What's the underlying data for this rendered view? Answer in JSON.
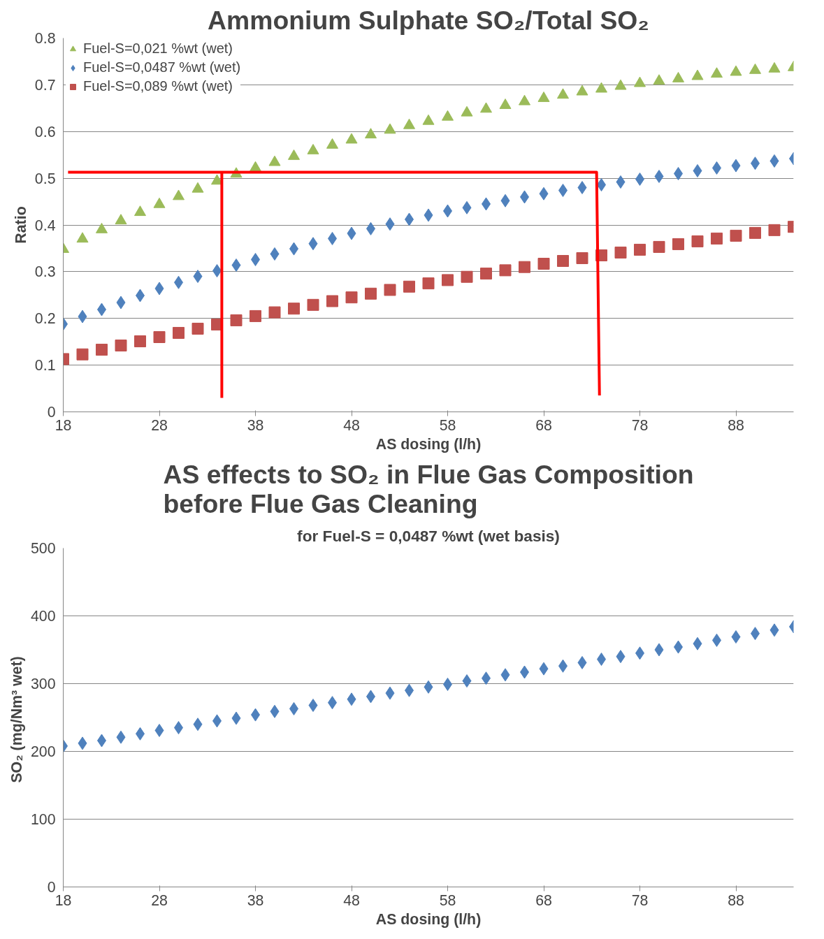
{
  "chart_data": [
    {
      "type": "scatter",
      "title": "Ammonium Sulphate SO₂/Total SO₂",
      "xlabel": "AS dosing (l/h)",
      "ylabel": "Ratio",
      "x": [
        18,
        20,
        22,
        24,
        26,
        28,
        30,
        32,
        34,
        36,
        38,
        40,
        42,
        44,
        46,
        48,
        50,
        52,
        54,
        56,
        58,
        60,
        62,
        64,
        66,
        68,
        70,
        72,
        74,
        76,
        78,
        80,
        82,
        84,
        86,
        88,
        90,
        92,
        94
      ],
      "xlim": [
        18,
        94
      ],
      "xticks": [
        18,
        28,
        38,
        48,
        58,
        68,
        78,
        88
      ],
      "ylim": [
        0,
        0.8
      ],
      "yticks": [
        0,
        0.1,
        0.2,
        0.3,
        0.4,
        0.5,
        0.6,
        0.7,
        0.8
      ],
      "grid": "y",
      "legend": "top left",
      "series": [
        {
          "name": "Fuel-S=0,021 %wt (wet)",
          "color": "#9bbb59",
          "marker": "triangle",
          "values": [
            0.348,
            0.37,
            0.39,
            0.409,
            0.427,
            0.444,
            0.461,
            0.477,
            0.494,
            0.509,
            0.522,
            0.534,
            0.547,
            0.559,
            0.571,
            0.582,
            0.593,
            0.603,
            0.613,
            0.622,
            0.631,
            0.64,
            0.648,
            0.656,
            0.664,
            0.671,
            0.678,
            0.685,
            0.691,
            0.697,
            0.703,
            0.708,
            0.713,
            0.718,
            0.723,
            0.727,
            0.731,
            0.734,
            0.737
          ]
        },
        {
          "name": "Fuel-S=0,0487 %wt (wet)",
          "color": "#4f81bd",
          "marker": "diamond",
          "values": [
            0.188,
            0.204,
            0.219,
            0.234,
            0.249,
            0.264,
            0.277,
            0.29,
            0.302,
            0.314,
            0.326,
            0.338,
            0.349,
            0.36,
            0.371,
            0.382,
            0.392,
            0.402,
            0.412,
            0.421,
            0.43,
            0.437,
            0.445,
            0.452,
            0.46,
            0.467,
            0.474,
            0.48,
            0.486,
            0.492,
            0.498,
            0.504,
            0.51,
            0.516,
            0.522,
            0.527,
            0.532,
            0.537,
            0.542
          ]
        },
        {
          "name": "Fuel-S=0,089 %wt (wet)",
          "color": "#c0504d",
          "marker": "square",
          "values": [
            0.113,
            0.123,
            0.133,
            0.142,
            0.151,
            0.16,
            0.169,
            0.178,
            0.187,
            0.196,
            0.205,
            0.213,
            0.221,
            0.229,
            0.237,
            0.245,
            0.253,
            0.261,
            0.268,
            0.275,
            0.282,
            0.289,
            0.296,
            0.303,
            0.31,
            0.317,
            0.323,
            0.329,
            0.335,
            0.341,
            0.347,
            0.353,
            0.359,
            0.365,
            0.371,
            0.377,
            0.383,
            0.389,
            0.396
          ]
        },
        {
          "type": "line",
          "color": "#ff0000",
          "marker": "none",
          "x": [
            18.5,
            73.5,
            73.8
          ],
          "values": [
            0.513,
            0.513,
            0.035
          ]
        },
        {
          "type": "line",
          "color": "#ff0000",
          "marker": "none",
          "x": [
            34.5,
            34.5
          ],
          "values": [
            0.513,
            0.03
          ]
        }
      ]
    },
    {
      "type": "scatter",
      "title": "AS effects to SO₂ in Flue Gas Composition before Flue Gas Cleaning",
      "subtitle": "for Fuel-S = 0,0487 %wt (wet basis)",
      "xlabel": "AS dosing (l/h)",
      "ylabel": "SO₂ (mg/Nm³  wet)",
      "x": [
        18,
        20,
        22,
        24,
        26,
        28,
        30,
        32,
        34,
        36,
        38,
        40,
        42,
        44,
        46,
        48,
        50,
        52,
        54,
        56,
        58,
        60,
        62,
        64,
        66,
        68,
        70,
        72,
        74,
        76,
        78,
        80,
        82,
        84,
        86,
        88,
        90,
        92,
        94
      ],
      "xlim": [
        18,
        94
      ],
      "xticks": [
        18,
        28,
        38,
        48,
        58,
        68,
        78,
        88
      ],
      "ylim": [
        0,
        500
      ],
      "yticks": [
        0,
        100,
        200,
        300,
        400,
        500
      ],
      "grid": "y",
      "series": [
        {
          "color": "#4f81bd",
          "marker": "diamond",
          "values": [
            208,
            212,
            216,
            221,
            226,
            231,
            235,
            240,
            245,
            249,
            254,
            259,
            263,
            268,
            272,
            277,
            281,
            286,
            290,
            295,
            299,
            304,
            308,
            313,
            317,
            322,
            326,
            331,
            336,
            340,
            345,
            350,
            354,
            359,
            364,
            369,
            374,
            379,
            384
          ]
        }
      ]
    }
  ]
}
